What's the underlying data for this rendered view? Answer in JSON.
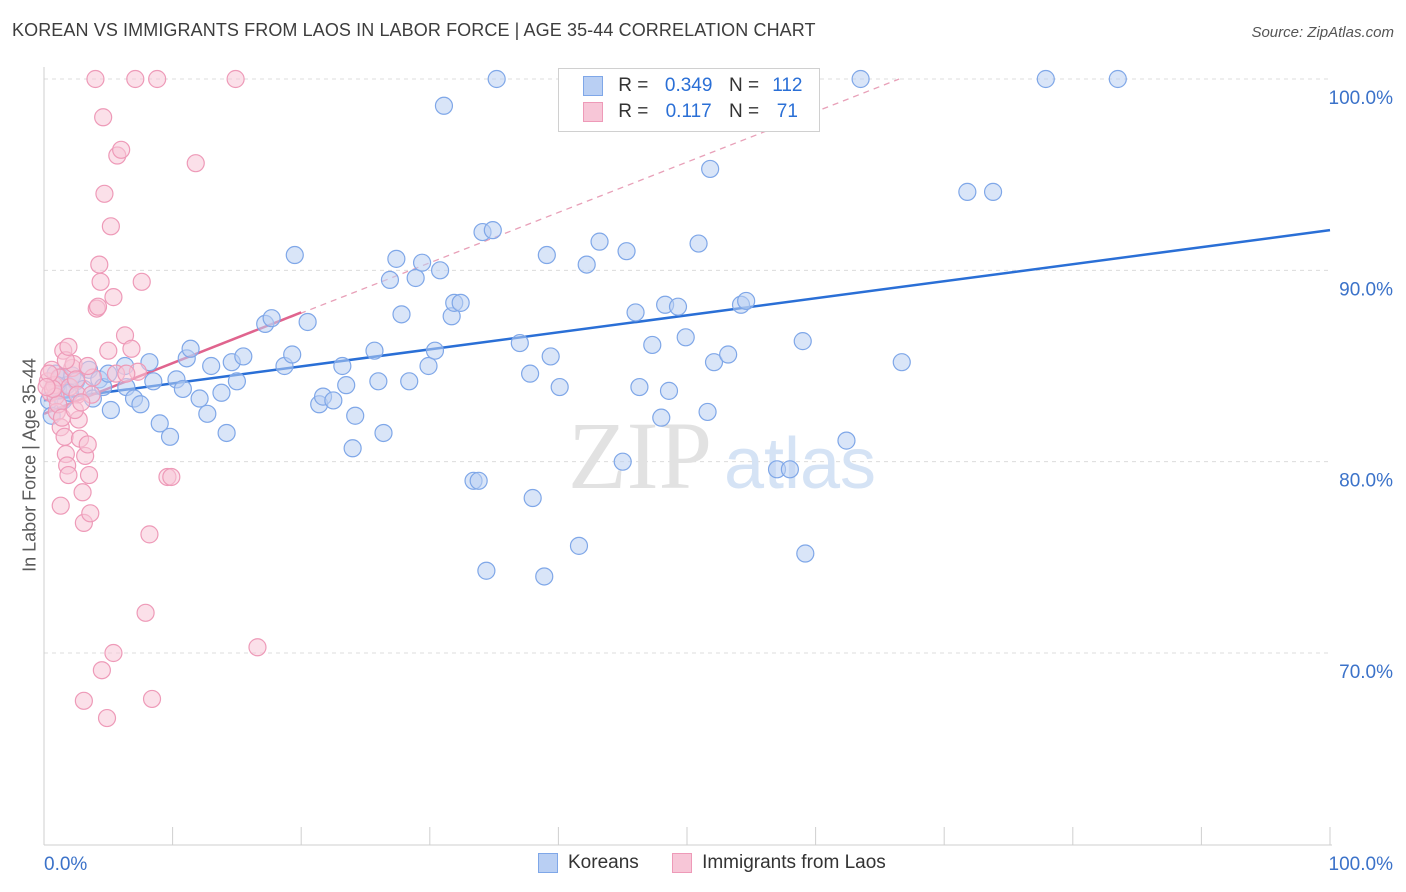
{
  "header": {
    "title": "KOREAN VS IMMIGRANTS FROM LAOS IN LABOR FORCE | AGE 35-44 CORRELATION CHART",
    "source": "Source: ZipAtlas.com"
  },
  "legend": {
    "rows": [
      {
        "r_label": "R =",
        "r_value": "0.349",
        "n_label": "N =",
        "n_value": "112"
      },
      {
        "r_label": "R =",
        "r_value": "0.117",
        "n_label": "N =",
        "n_value": "71"
      }
    ],
    "bottom": [
      "Koreans",
      "Immigrants from Laos"
    ]
  },
  "watermark": {
    "zip": "ZIP",
    "atlas": "atlas"
  },
  "chart_data": {
    "type": "scatter",
    "title": "KOREAN VS IMMIGRANTS FROM LAOS IN LABOR FORCE | AGE 35-44 CORRELATION CHART",
    "xlabel": "",
    "ylabel": "In Labor Force | Age 35-44",
    "xlim": [
      0,
      100
    ],
    "ylim": [
      60,
      101
    ],
    "x_ticks": [
      "0.0%",
      "100.0%"
    ],
    "y_ticks": [
      {
        "value": 70,
        "label": "70.0%"
      },
      {
        "value": 80,
        "label": "80.0%"
      },
      {
        "value": 90,
        "label": "90.0%"
      },
      {
        "value": 100,
        "label": "100.0%"
      }
    ],
    "grid": true,
    "legend_position": "top-center",
    "series": [
      {
        "name": "Koreans",
        "color": "#7fa7e8",
        "fill": "#b9cff3",
        "trend": {
          "x": [
            0,
            100
          ],
          "y": [
            83.2,
            92.1
          ],
          "color": "#2a6fd6",
          "style": "solid"
        },
        "points": [
          [
            0.4,
            83.2
          ],
          [
            0.6,
            82.4
          ],
          [
            0.9,
            84.6
          ],
          [
            1.1,
            83.8
          ],
          [
            1.3,
            84.4
          ],
          [
            1.5,
            83.2
          ],
          [
            1.8,
            84.0
          ],
          [
            2.2,
            84.5
          ],
          [
            2.5,
            84.2
          ],
          [
            3.1,
            83.8
          ],
          [
            3.5,
            84.8
          ],
          [
            3.8,
            83.3
          ],
          [
            4.3,
            84.3
          ],
          [
            4.6,
            83.9
          ],
          [
            5.0,
            84.6
          ],
          [
            5.2,
            82.7
          ],
          [
            6.3,
            85.0
          ],
          [
            6.4,
            83.9
          ],
          [
            7.0,
            83.3
          ],
          [
            7.5,
            83.0
          ],
          [
            8.2,
            85.2
          ],
          [
            8.5,
            84.2
          ],
          [
            9.0,
            82.0
          ],
          [
            9.8,
            81.3
          ],
          [
            10.3,
            84.3
          ],
          [
            10.8,
            83.8
          ],
          [
            11.1,
            85.4
          ],
          [
            11.4,
            85.9
          ],
          [
            12.1,
            83.3
          ],
          [
            12.7,
            82.5
          ],
          [
            13.0,
            85.0
          ],
          [
            13.8,
            83.6
          ],
          [
            14.2,
            81.5
          ],
          [
            14.6,
            85.2
          ],
          [
            15.0,
            84.2
          ],
          [
            15.5,
            85.5
          ],
          [
            17.2,
            87.2
          ],
          [
            17.7,
            87.5
          ],
          [
            18.7,
            85.0
          ],
          [
            19.3,
            85.6
          ],
          [
            19.5,
            90.8
          ],
          [
            20.5,
            87.3
          ],
          [
            21.4,
            83.0
          ],
          [
            21.7,
            83.4
          ],
          [
            22.5,
            83.2
          ],
          [
            23.2,
            85.0
          ],
          [
            23.5,
            84.0
          ],
          [
            24.0,
            80.7
          ],
          [
            24.2,
            82.4
          ],
          [
            25.7,
            85.8
          ],
          [
            26.0,
            84.2
          ],
          [
            26.4,
            81.5
          ],
          [
            26.9,
            89.5
          ],
          [
            27.4,
            90.6
          ],
          [
            27.8,
            87.7
          ],
          [
            28.4,
            84.2
          ],
          [
            28.9,
            89.6
          ],
          [
            29.4,
            90.4
          ],
          [
            29.9,
            85.0
          ],
          [
            30.4,
            85.8
          ],
          [
            30.8,
            90.0
          ],
          [
            31.7,
            87.6
          ],
          [
            31.9,
            88.3
          ],
          [
            32.4,
            88.3
          ],
          [
            33.4,
            79.0
          ],
          [
            33.8,
            79.0
          ],
          [
            34.1,
            92.0
          ],
          [
            34.4,
            74.3
          ],
          [
            34.9,
            92.1
          ],
          [
            35.2,
            100.0
          ],
          [
            31.1,
            98.6
          ],
          [
            37.0,
            86.2
          ],
          [
            37.8,
            84.6
          ],
          [
            38.0,
            78.1
          ],
          [
            38.9,
            74.0
          ],
          [
            39.1,
            90.8
          ],
          [
            39.4,
            85.5
          ],
          [
            40.1,
            83.9
          ],
          [
            41.6,
            75.6
          ],
          [
            42.2,
            90.3
          ],
          [
            43.2,
            91.5
          ],
          [
            45.0,
            80.0
          ],
          [
            45.3,
            91.0
          ],
          [
            46.0,
            87.8
          ],
          [
            46.3,
            83.9
          ],
          [
            47.3,
            86.1
          ],
          [
            48.0,
            82.3
          ],
          [
            48.3,
            88.2
          ],
          [
            48.6,
            83.7
          ],
          [
            49.3,
            88.1
          ],
          [
            49.9,
            86.5
          ],
          [
            50.9,
            91.4
          ],
          [
            51.6,
            82.6
          ],
          [
            51.8,
            95.3
          ],
          [
            52.1,
            85.2
          ],
          [
            53.2,
            85.6
          ],
          [
            54.2,
            88.2
          ],
          [
            54.6,
            88.4
          ],
          [
            57.0,
            79.6
          ],
          [
            58.0,
            79.6
          ],
          [
            59.0,
            86.3
          ],
          [
            59.2,
            75.2
          ],
          [
            62.4,
            81.1
          ],
          [
            66.7,
            85.2
          ],
          [
            71.8,
            94.1
          ],
          [
            73.8,
            94.1
          ],
          [
            77.9,
            100.0
          ],
          [
            83.5,
            100.0
          ],
          [
            63.5,
            100.0
          ],
          [
            55.0,
            100.0
          ],
          [
            1.0,
            84.0
          ],
          [
            2.0,
            83.6
          ]
        ]
      },
      {
        "name": "Immigrants from Laos",
        "color": "#ee9ab8",
        "fill": "#f7c6d7",
        "trend": {
          "x": [
            0,
            20
          ],
          "y": [
            82.5,
            87.8
          ],
          "color": "#e0648e",
          "style": "solid"
        },
        "trend_ext": {
          "x": [
            0,
            66.5
          ],
          "y": [
            82.5,
            100.0
          ],
          "color": "#e8a0b8",
          "style": "dashed"
        },
        "points": [
          [
            0.3,
            84.2
          ],
          [
            0.5,
            83.6
          ],
          [
            0.6,
            84.8
          ],
          [
            0.8,
            84.0
          ],
          [
            0.9,
            83.4
          ],
          [
            1.0,
            82.6
          ],
          [
            1.1,
            83.0
          ],
          [
            1.2,
            84.4
          ],
          [
            1.3,
            81.8
          ],
          [
            1.4,
            82.3
          ],
          [
            1.5,
            85.8
          ],
          [
            1.6,
            81.3
          ],
          [
            1.7,
            80.4
          ],
          [
            1.8,
            79.8
          ],
          [
            1.9,
            79.3
          ],
          [
            2.0,
            83.9
          ],
          [
            2.2,
            84.9
          ],
          [
            2.3,
            85.1
          ],
          [
            2.5,
            84.3
          ],
          [
            2.6,
            83.5
          ],
          [
            2.7,
            82.2
          ],
          [
            2.8,
            81.2
          ],
          [
            3.0,
            78.4
          ],
          [
            3.1,
            76.8
          ],
          [
            3.2,
            80.3
          ],
          [
            3.4,
            80.9
          ],
          [
            3.5,
            79.3
          ],
          [
            3.6,
            77.3
          ],
          [
            3.7,
            83.5
          ],
          [
            3.8,
            84.4
          ],
          [
            4.1,
            88.0
          ],
          [
            4.3,
            90.3
          ],
          [
            4.4,
            89.4
          ],
          [
            4.6,
            98.0
          ],
          [
            4.7,
            94.0
          ],
          [
            5.0,
            85.8
          ],
          [
            5.2,
            92.3
          ],
          [
            5.4,
            88.6
          ],
          [
            5.7,
            96.0
          ],
          [
            6.0,
            96.3
          ],
          [
            6.3,
            86.6
          ],
          [
            6.8,
            85.9
          ],
          [
            7.3,
            84.7
          ],
          [
            7.6,
            89.4
          ],
          [
            7.9,
            72.1
          ],
          [
            8.2,
            76.2
          ],
          [
            8.4,
            67.6
          ],
          [
            9.6,
            79.2
          ],
          [
            9.9,
            79.2
          ],
          [
            11.8,
            95.6
          ],
          [
            4.0,
            100.0
          ],
          [
            7.1,
            100.0
          ],
          [
            8.8,
            100.0
          ],
          [
            14.9,
            100.0
          ],
          [
            16.6,
            70.3
          ],
          [
            5.4,
            70.0
          ],
          [
            4.5,
            69.1
          ],
          [
            4.9,
            66.6
          ],
          [
            3.1,
            67.5
          ],
          [
            1.3,
            77.7
          ],
          [
            1.7,
            85.3
          ],
          [
            2.4,
            82.7
          ],
          [
            0.7,
            83.8
          ],
          [
            0.4,
            84.6
          ],
          [
            0.2,
            83.9
          ],
          [
            1.9,
            86.0
          ],
          [
            3.4,
            85.0
          ],
          [
            5.6,
            84.6
          ],
          [
            4.2,
            88.1
          ],
          [
            6.4,
            84.6
          ],
          [
            2.9,
            83.1
          ]
        ]
      }
    ]
  }
}
